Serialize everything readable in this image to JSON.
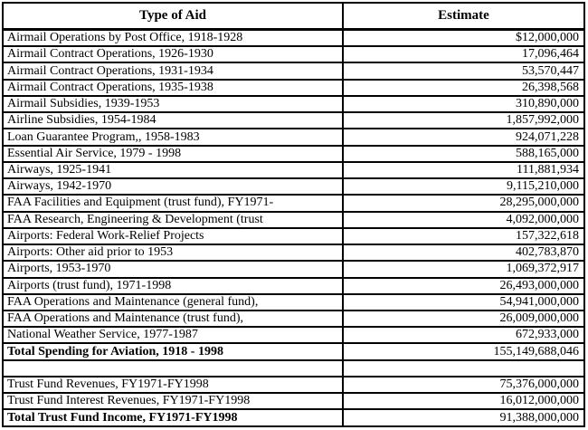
{
  "table": {
    "columns": [
      "Type of Aid",
      "Estimate"
    ],
    "rows": [
      {
        "label": "Airmail Operations by Post Office, 1918-1928",
        "value": "$12,000,000",
        "bold": false
      },
      {
        "label": "Airmail Contract Operations, 1926-1930",
        "value": "17,096,464",
        "bold": false
      },
      {
        "label": "Airmail Contract Operations, 1931-1934",
        "value": "53,570,447",
        "bold": false
      },
      {
        "label": "Airmail Contract Operations, 1935-1938",
        "value": "26,398,568",
        "bold": false
      },
      {
        "label": "Airmail Subsidies, 1939-1953",
        "value": "310,890,000",
        "bold": false
      },
      {
        "label": "Airline Subsidies, 1954-1984",
        "value": "1,857,992,000",
        "bold": false
      },
      {
        "label": "Loan Guarantee Program,, 1958-1983",
        "value": "924,071,228",
        "bold": false
      },
      {
        "label": "Essential Air Service, 1979 - 1998",
        "value": "588,165,000",
        "bold": false
      },
      {
        "label": "Airways, 1925-1941",
        "value": "111,881,934",
        "bold": false
      },
      {
        "label": "Airways, 1942-1970",
        "value": "9,115,210,000",
        "bold": false
      },
      {
        "label": "FAA Facilities and Equipment (trust fund), FY1971-",
        "value": "28,295,000,000",
        "bold": false
      },
      {
        "label": "FAA Research, Engineering & Development (trust",
        "value": "4,092,000,000",
        "bold": false
      },
      {
        "label": "Airports: Federal Work-Relief Projects",
        "value": "157,322,618",
        "bold": false
      },
      {
        "label": "Airports: Other aid prior to 1953",
        "value": "402,783,870",
        "bold": false
      },
      {
        "label": "Airports, 1953-1970",
        "value": "1,069,372,917",
        "bold": false
      },
      {
        "label": "Airports (trust fund), 1971-1998",
        "value": "26,493,000,000",
        "bold": false
      },
      {
        "label": "FAA Operations and Maintenance (general fund),",
        "value": "54,941,000,000",
        "bold": false
      },
      {
        "label": "FAA Operations and Maintenance (trust fund),",
        "value": "26,009,000,000",
        "bold": false
      },
      {
        "label": "National Weather Service, 1977-1987",
        "value": "672,933,000",
        "bold": false
      },
      {
        "label": "Total Spending for Aviation, 1918 - 1998",
        "value": "155,149,688,046",
        "bold": true
      },
      {
        "label": "",
        "value": "",
        "bold": false
      },
      {
        "label": "Trust Fund Revenues, FY1971-FY1998",
        "value": "75,376,000,000",
        "bold": false
      },
      {
        "label": "Trust Fund Interest Revenues, FY1971-FY1998",
        "value": "16,012,000,000",
        "bold": false
      },
      {
        "label": "Total Trust Fund Income, FY1971-FY1998",
        "value": "91,388,000,000",
        "bold": true
      }
    ]
  },
  "colors": {
    "border": "#000000",
    "text": "#000000",
    "background": "#ffffff"
  }
}
